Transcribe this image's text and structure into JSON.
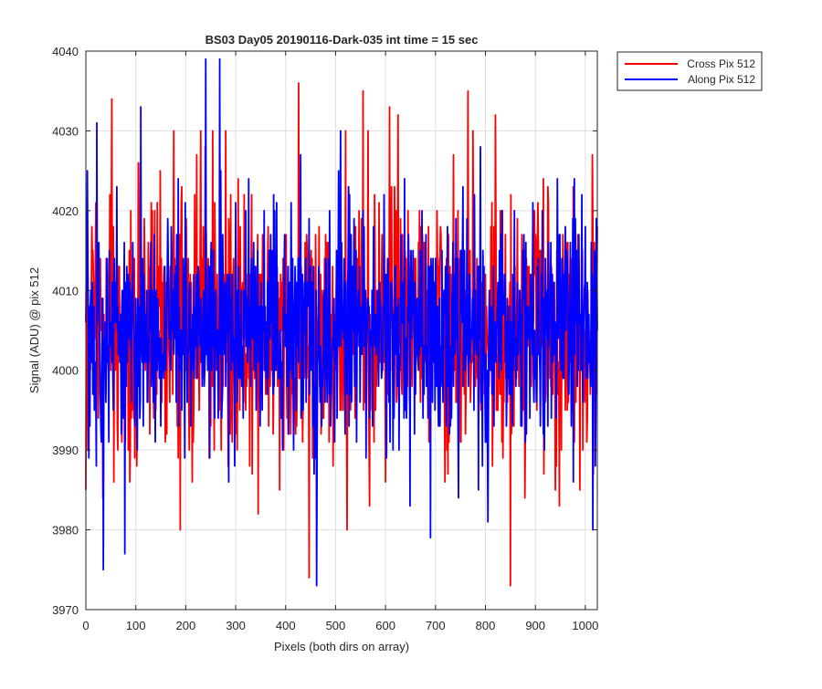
{
  "chart_data": {
    "type": "line",
    "title": "BS03 Day05 20190116-Dark-035 int time = 15 sec",
    "xlabel": "Pixels (both dirs on array)",
    "ylabel": "Signal (ADU) @ pix 512",
    "xlim": [
      0,
      1024
    ],
    "ylim": [
      3970,
      4040
    ],
    "xticks": [
      0,
      100,
      200,
      300,
      400,
      500,
      600,
      700,
      800,
      900,
      1000
    ],
    "yticks": [
      3970,
      3980,
      3990,
      4000,
      4010,
      4020,
      4030,
      4040
    ],
    "grid": true,
    "legend_position": "outside-top-right",
    "series": [
      {
        "name": "Cross Pix 512",
        "color": "#ff0000",
        "trend": {
          "mean": 4005,
          "std": 8
        },
        "highlights": [
          [
            0,
            3985
          ],
          [
            52,
            4034
          ],
          [
            56,
            3986
          ],
          [
            105,
            4026
          ],
          [
            109,
            4026
          ],
          [
            176,
            4030
          ],
          [
            230,
            4030
          ],
          [
            254,
            4030
          ],
          [
            280,
            4030
          ],
          [
            345,
            3982
          ],
          [
            426,
            4036
          ],
          [
            447,
            3974
          ],
          [
            523,
            3980
          ],
          [
            520,
            4030
          ],
          [
            555,
            4035
          ],
          [
            568,
            3983
          ],
          [
            565,
            4030
          ],
          [
            608,
            4033
          ],
          [
            625,
            4032
          ],
          [
            765,
            4035
          ],
          [
            775,
            4030
          ],
          [
            820,
            4032
          ],
          [
            850,
            3973
          ],
          [
            895,
            4019
          ],
          [
            948,
            3983
          ]
        ]
      },
      {
        "name": "Along Pix 512",
        "color": "#0000ff",
        "trend": {
          "mean": 4005,
          "std": 7
        },
        "highlights": [
          [
            3,
            4025
          ],
          [
            22,
            4031
          ],
          [
            35,
            3975
          ],
          [
            78,
            3977
          ],
          [
            110,
            4033
          ],
          [
            240,
            4039
          ],
          [
            248,
            3989
          ],
          [
            268,
            4039
          ],
          [
            326,
            4024
          ],
          [
            350,
            4004
          ],
          [
            430,
            4027
          ],
          [
            462,
            3973
          ],
          [
            510,
            4030
          ],
          [
            528,
            4022
          ],
          [
            690,
            3979
          ],
          [
            790,
            4028
          ],
          [
            805,
            3981
          ],
          [
            858,
            4020
          ],
          [
            975,
            4019
          ],
          [
            1015,
            3980
          ],
          [
            1020,
            3988
          ]
        ]
      }
    ]
  }
}
